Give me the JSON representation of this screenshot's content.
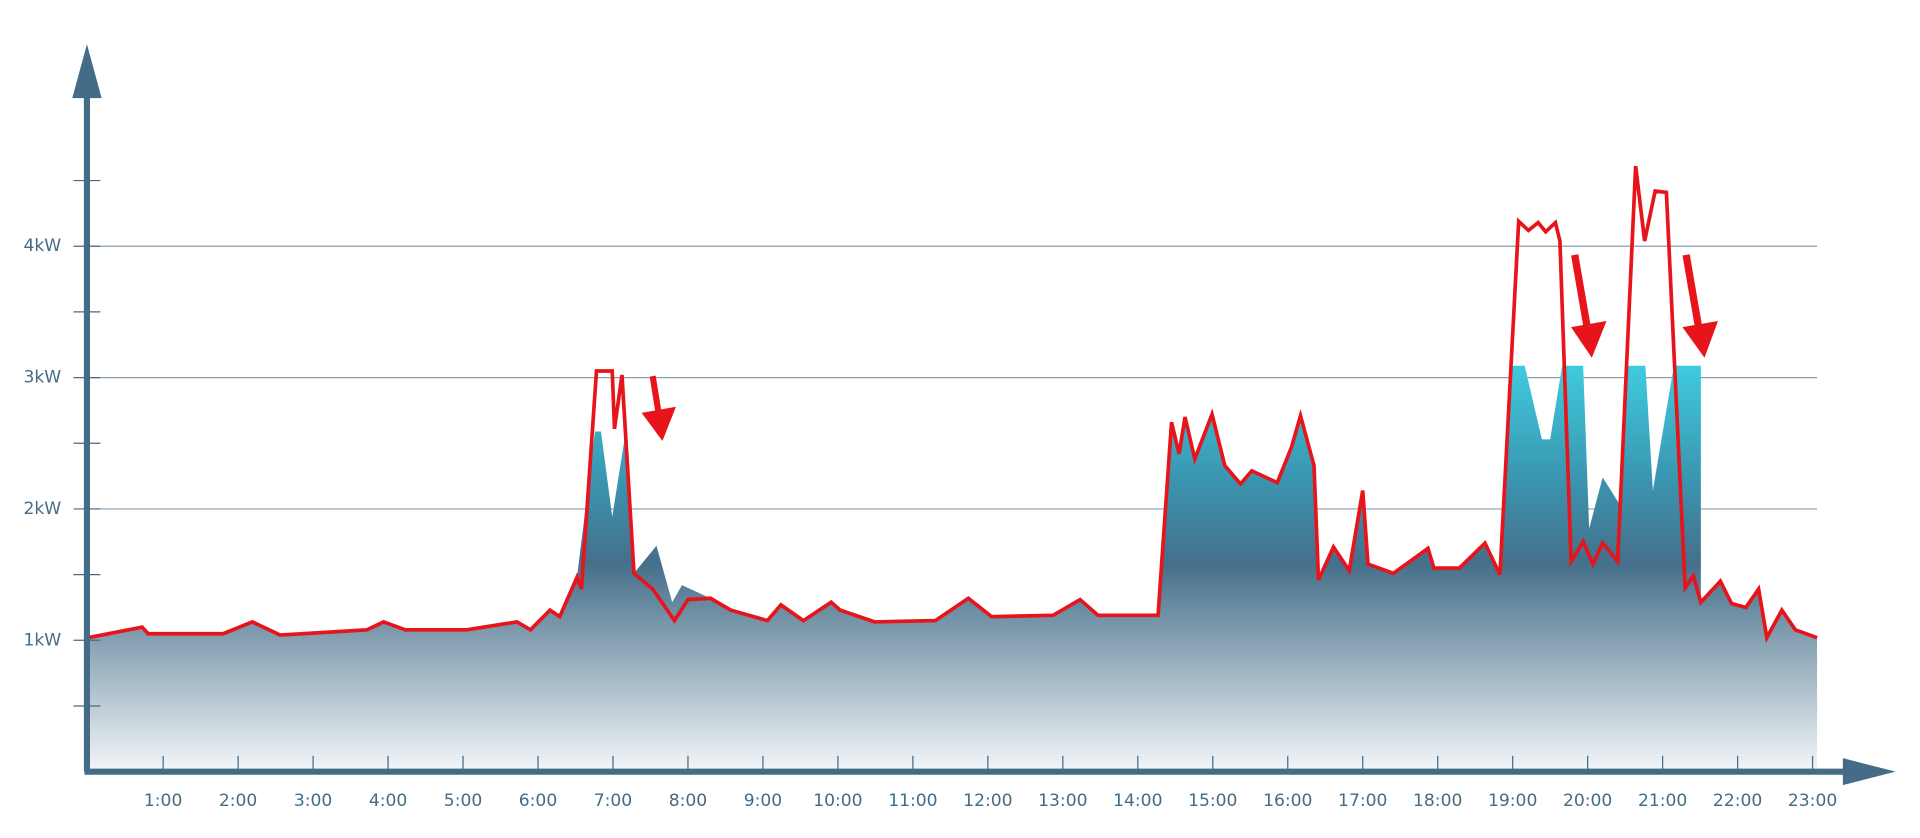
{
  "chart_data": {
    "type": "area",
    "xlim": [
      0,
      24
    ],
    "ylim": [
      0,
      5.5
    ],
    "xticks": [
      {
        "value": 1,
        "label": "1:00"
      },
      {
        "value": 2,
        "label": "2:00"
      },
      {
        "value": 3,
        "label": "3:00"
      },
      {
        "value": 4,
        "label": "4:00"
      },
      {
        "value": 5,
        "label": "5:00"
      },
      {
        "value": 6,
        "label": "6:00"
      },
      {
        "value": 7,
        "label": "7:00"
      },
      {
        "value": 8,
        "label": "8:00"
      },
      {
        "value": 9,
        "label": "9:00"
      },
      {
        "value": 10,
        "label": "10:00"
      },
      {
        "value": 11,
        "label": "11:00"
      },
      {
        "value": 12,
        "label": "12:00"
      },
      {
        "value": 13,
        "label": "13:00"
      },
      {
        "value": 14,
        "label": "14:00"
      },
      {
        "value": 15,
        "label": "15:00"
      },
      {
        "value": 16,
        "label": "16:00"
      },
      {
        "value": 17,
        "label": "17:00"
      },
      {
        "value": 18,
        "label": "18:00"
      },
      {
        "value": 19,
        "label": "19:00"
      },
      {
        "value": 20,
        "label": "20:00"
      },
      {
        "value": 21,
        "label": "21:00"
      },
      {
        "value": 22,
        "label": "22:00"
      },
      {
        "value": 23,
        "label": "23:00"
      }
    ],
    "yticks": [
      {
        "value": 1,
        "label": "1kW"
      },
      {
        "value": 2,
        "label": "2kW"
      },
      {
        "value": 3,
        "label": "3kW"
      },
      {
        "value": 4,
        "label": "4kW"
      }
    ],
    "minor_yticks": [
      0.5,
      1.5,
      2.5,
      3.5,
      4.5
    ],
    "grid": true,
    "series": [
      {
        "type": "area",
        "color": "#456f8a",
        "x": [
          0.0,
          0.72,
          0.8,
          1.8,
          2.19,
          2.56,
          3.72,
          3.94,
          4.23,
          5.05,
          5.72,
          5.9,
          6.16,
          6.29,
          6.52,
          6.76,
          6.84,
          6.99,
          7.17,
          7.28,
          7.58,
          7.79,
          7.92,
          8.3,
          8.57,
          9.06,
          9.24,
          9.54,
          9.91,
          10.03,
          10.49,
          11.3,
          11.74,
          12.05,
          12.87,
          13.23,
          13.47,
          14.27,
          14.45,
          14.55,
          14.63,
          14.76,
          14.99,
          15.16,
          15.37,
          15.52,
          15.86,
          16.05,
          16.17,
          16.35,
          16.41,
          16.61,
          16.82,
          17.0,
          17.07,
          17.41,
          17.87,
          17.95,
          18.29,
          18.63,
          18.83,
          18.98,
          19.16,
          19.39,
          19.5,
          19.66,
          19.94,
          20.02,
          20.2,
          20.41,
          20.54,
          20.77,
          20.87,
          21.15,
          21.51,
          21.51,
          21.77,
          21.92,
          22.11,
          22.28,
          22.39,
          22.59,
          22.77,
          23.06
        ],
        "values": [
          1.02,
          1.1,
          1.05,
          1.05,
          1.14,
          1.04,
          1.08,
          1.14,
          1.08,
          1.08,
          1.14,
          1.08,
          1.23,
          1.18,
          1.48,
          2.59,
          2.59,
          1.94,
          2.59,
          1.51,
          1.72,
          1.29,
          1.42,
          1.32,
          1.23,
          1.15,
          1.27,
          1.15,
          1.29,
          1.23,
          1.14,
          1.15,
          1.32,
          1.18,
          1.19,
          1.31,
          1.19,
          1.19,
          2.66,
          2.42,
          2.7,
          2.38,
          2.72,
          2.33,
          2.19,
          2.29,
          2.2,
          2.47,
          2.71,
          2.33,
          1.46,
          1.71,
          1.53,
          2.14,
          1.58,
          1.51,
          1.7,
          1.55,
          1.55,
          1.74,
          1.5,
          3.09,
          3.09,
          2.53,
          2.53,
          3.09,
          3.09,
          1.85,
          2.24,
          2.05,
          3.09,
          3.09,
          2.14,
          3.09,
          3.09,
          1.29,
          1.45,
          1.28,
          1.25,
          1.39,
          1.02,
          1.23,
          1.08,
          1.02
        ]
      },
      {
        "type": "line",
        "color": "#e8141b",
        "x": [
          0.0,
          0.72,
          0.8,
          1.8,
          2.19,
          2.56,
          3.72,
          3.94,
          4.23,
          5.05,
          5.72,
          5.9,
          6.16,
          6.29,
          6.52,
          6.58,
          6.78,
          6.99,
          7.02,
          7.12,
          7.28,
          7.53,
          7.82,
          8.0,
          8.3,
          8.57,
          9.06,
          9.24,
          9.54,
          9.91,
          10.03,
          10.49,
          11.3,
          11.74,
          12.05,
          12.87,
          13.23,
          13.47,
          14.27,
          14.45,
          14.55,
          14.63,
          14.76,
          14.99,
          15.16,
          15.37,
          15.52,
          15.86,
          16.05,
          16.17,
          16.35,
          16.41,
          16.61,
          16.82,
          17.0,
          17.07,
          17.41,
          17.87,
          17.95,
          18.29,
          18.63,
          18.83,
          19.08,
          19.21,
          19.34,
          19.44,
          19.57,
          19.63,
          19.78,
          19.94,
          20.07,
          20.2,
          20.4,
          20.64,
          20.76,
          20.9,
          21.05,
          21.3,
          21.41,
          21.51,
          21.77,
          21.92,
          22.11,
          22.28,
          22.39,
          22.59,
          22.77,
          23.06
        ],
        "values": [
          1.02,
          1.1,
          1.05,
          1.05,
          1.14,
          1.04,
          1.08,
          1.14,
          1.08,
          1.08,
          1.14,
          1.08,
          1.23,
          1.18,
          1.48,
          1.39,
          3.05,
          3.05,
          2.61,
          3.02,
          1.51,
          1.39,
          1.15,
          1.31,
          1.32,
          1.23,
          1.15,
          1.27,
          1.15,
          1.29,
          1.23,
          1.14,
          1.15,
          1.32,
          1.18,
          1.19,
          1.31,
          1.19,
          1.19,
          2.66,
          2.42,
          2.7,
          2.38,
          2.72,
          2.33,
          2.19,
          2.29,
          2.2,
          2.47,
          2.71,
          2.33,
          1.46,
          1.71,
          1.53,
          2.14,
          1.58,
          1.51,
          1.7,
          1.55,
          1.55,
          1.74,
          1.5,
          4.19,
          4.12,
          4.18,
          4.11,
          4.18,
          4.04,
          1.6,
          1.75,
          1.58,
          1.74,
          1.6,
          4.61,
          4.04,
          4.42,
          4.41,
          1.4,
          1.49,
          1.29,
          1.45,
          1.28,
          1.25,
          1.39,
          1.02,
          1.23,
          1.08,
          1.02
        ]
      }
    ]
  }
}
